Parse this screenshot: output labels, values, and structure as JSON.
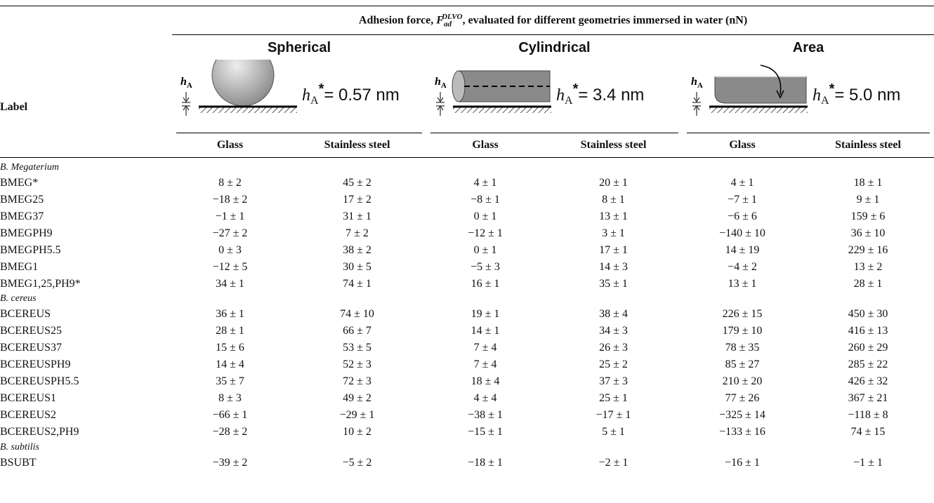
{
  "header": {
    "title_before": "Adhesion force, ",
    "symbol": "F",
    "symbol_sub": "ad",
    "symbol_sup": "DLVO",
    "title_after": ", evaluated for different geometries immersed in water (nN)"
  },
  "label_header": "Label",
  "subcolumns": [
    "Glass",
    "Stainless steel"
  ],
  "groups": [
    {
      "name": "Spherical",
      "icon_label": "h",
      "icon_label_sub": "A",
      "cutoff_symbol": "h",
      "cutoff_sub": "A",
      "cutoff_sup": "*",
      "cutoff_value": "= 0.57 nm"
    },
    {
      "name": "Cylindrical",
      "icon_label": "h",
      "icon_label_sub": "A",
      "cutoff_symbol": "h",
      "cutoff_sub": "A",
      "cutoff_sup": "*",
      "cutoff_value": "= 3.4 nm"
    },
    {
      "name": "Area",
      "icon_label": "h",
      "icon_label_sub": "A",
      "cutoff_symbol": "h",
      "cutoff_sub": "A",
      "cutoff_sup": "*",
      "cutoff_value": "= 5.0 nm"
    }
  ],
  "sections": [
    {
      "name": "B. Megaterium",
      "rows": [
        {
          "label": "BMEG*",
          "cells": [
            "8 ± 2",
            "45 ± 2",
            "4 ± 1",
            "20 ± 1",
            "4 ± 1",
            "18 ± 1"
          ]
        },
        {
          "label": "BMEG25",
          "cells": [
            "−18 ± 2",
            "17 ± 2",
            "−8 ± 1",
            "8 ± 1",
            "−7 ± 1",
            "9 ± 1"
          ]
        },
        {
          "label": "BMEG37",
          "cells": [
            "−1 ± 1",
            "31 ± 1",
            "0 ± 1",
            "13 ± 1",
            "−6 ± 6",
            "159 ± 6"
          ]
        },
        {
          "label": "BMEGPH9",
          "cells": [
            "−27 ± 2",
            "7 ± 2",
            "−12 ± 1",
            "3 ± 1",
            "−140 ± 10",
            "36 ± 10"
          ]
        },
        {
          "label": "BMEGPH5.5",
          "cells": [
            "0 ± 3",
            "38 ± 2",
            "0 ± 1",
            "17 ± 1",
            "14 ± 19",
            "229 ± 16"
          ]
        },
        {
          "label": "BMEG1",
          "cells": [
            "−12 ± 5",
            "30 ± 5",
            "−5 ± 3",
            "14 ± 3",
            "−4 ± 2",
            "13 ± 2"
          ]
        },
        {
          "label": "BMEG1,25,PH9*",
          "cells": [
            "34 ± 1",
            "74 ± 1",
            "16 ± 1",
            "35 ± 1",
            "13 ± 1",
            "28 ± 1"
          ]
        }
      ]
    },
    {
      "name": "B. cereus",
      "rows": [
        {
          "label": "BCEREUS",
          "cells": [
            "36 ± 1",
            "74 ± 10",
            "19 ± 1",
            "38 ± 4",
            "226 ± 15",
            "450 ± 30"
          ]
        },
        {
          "label": "BCEREUS25",
          "cells": [
            "28 ± 1",
            "66 ± 7",
            "14 ± 1",
            "34 ± 3",
            "179 ± 10",
            "416 ± 13"
          ]
        },
        {
          "label": "BCEREUS37",
          "cells": [
            "15 ± 6",
            "53 ± 5",
            "7 ± 4",
            "26 ± 3",
            "78 ± 35",
            "260 ± 29"
          ]
        },
        {
          "label": "BCEREUSPH9",
          "cells": [
            "14 ± 4",
            "52 ± 3",
            "7 ± 4",
            "25 ± 2",
            "85 ± 27",
            "285 ± 22"
          ]
        },
        {
          "label": "BCEREUSPH5.5",
          "cells": [
            "35 ± 7",
            "72 ± 3",
            "18 ± 4",
            "37 ± 3",
            "210 ± 20",
            "426 ± 32"
          ]
        },
        {
          "label": "BCEREUS1",
          "cells": [
            "8 ± 3",
            "49 ± 2",
            "4 ± 4",
            "25 ± 1",
            "77 ± 26",
            "367 ± 21"
          ]
        },
        {
          "label": "BCEREUS2",
          "cells": [
            "−66 ± 1",
            "−29 ± 1",
            "−38 ± 1",
            "−17 ± 1",
            "−325 ± 14",
            "−118 ± 8"
          ]
        },
        {
          "label": "BCEREUS2,PH9",
          "cells": [
            "−28 ± 2",
            "10 ± 2",
            "−15 ± 1",
            "5 ± 1",
            "−133 ± 16",
            "74 ± 15"
          ]
        }
      ]
    },
    {
      "name": "B. subtilis",
      "rows": [
        {
          "label": "BSUBT",
          "cells": [
            "−39 ± 2",
            "−5 ± 2",
            "−18 ± 1",
            "−2 ± 1",
            "−16 ± 1",
            "−1 ± 1"
          ]
        }
      ]
    }
  ]
}
